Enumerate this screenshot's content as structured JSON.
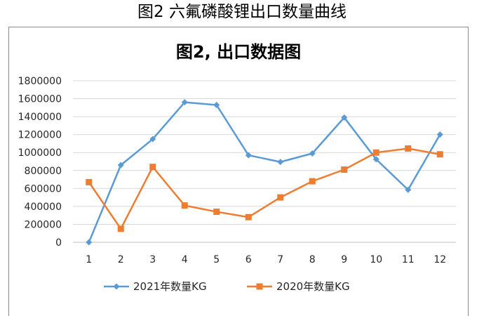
{
  "figure_caption": "图2 六氟磷酸锂出口数量曲线",
  "chart_data": {
    "type": "line",
    "title": "图2, 出口数据图",
    "xlabel": "",
    "ylabel": "",
    "categories": [
      "1",
      "2",
      "3",
      "4",
      "5",
      "6",
      "7",
      "8",
      "9",
      "10",
      "11",
      "12"
    ],
    "ylim": [
      0,
      1800000
    ],
    "yticks": [
      "0",
      "200000",
      "400000",
      "600000",
      "800000",
      "1000000",
      "1200000",
      "1400000",
      "1600000",
      "1800000"
    ],
    "grid": true,
    "legend_position": "bottom",
    "series": [
      {
        "name": "2021年数量KG",
        "marker": "diamond",
        "color": "#5b9bd5",
        "values": [
          0,
          860000,
          1150000,
          1560000,
          1530000,
          970000,
          895000,
          990000,
          1390000,
          925000,
          585000,
          1200000
        ]
      },
      {
        "name": "2020年数量KG",
        "marker": "square",
        "color": "#ed7d31",
        "values": [
          670000,
          150000,
          840000,
          410000,
          340000,
          280000,
          500000,
          680000,
          810000,
          1000000,
          1045000,
          980000
        ]
      }
    ]
  }
}
